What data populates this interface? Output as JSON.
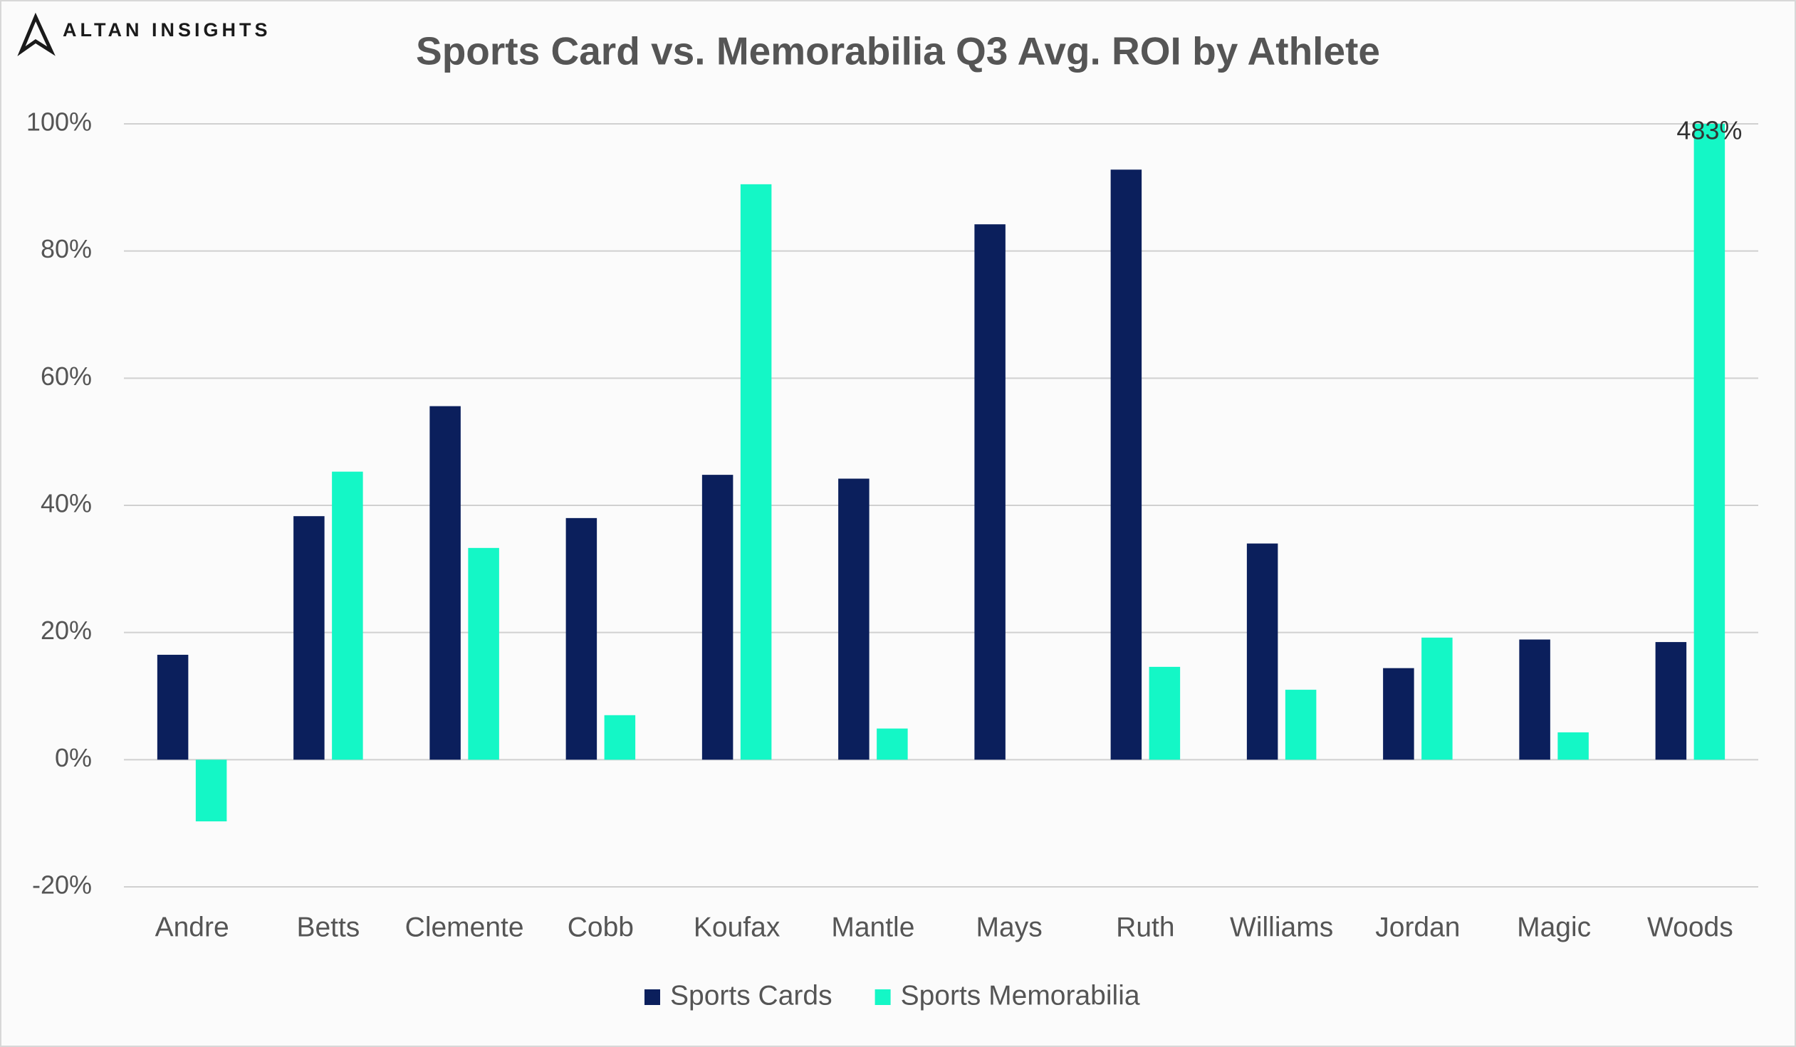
{
  "brand": "ALTAN INSIGHTS",
  "chart_data": {
    "type": "bar",
    "title": "Sports Card vs. Memorabilia Q3 Avg. ROI by Athlete",
    "categories": [
      "Andre",
      "Betts",
      "Clemente",
      "Cobb",
      "Koufax",
      "Mantle",
      "Mays",
      "Ruth",
      "Williams",
      "Jordan",
      "Magic",
      "Woods"
    ],
    "series": [
      {
        "name": "Sports Cards",
        "color": "#0b1f5c",
        "values": [
          16.5,
          38.3,
          55.6,
          38,
          44.8,
          44.2,
          84.2,
          92.8,
          34,
          14.4,
          18.9,
          18.5
        ]
      },
      {
        "name": "Sports Memorabilia",
        "color": "#14f7c6",
        "values": [
          -9.7,
          45.3,
          33.3,
          7,
          90.5,
          4.9,
          0,
          14.6,
          11,
          19.2,
          4.3,
          483
        ],
        "value_labels": [
          null,
          null,
          null,
          null,
          null,
          null,
          null,
          null,
          null,
          null,
          null,
          "483%"
        ]
      }
    ],
    "ylim": [
      -20,
      100
    ],
    "yticks": [
      {
        "value": -20,
        "label": "-20%"
      },
      {
        "value": 0,
        "label": "0%"
      },
      {
        "value": 20,
        "label": "20%"
      },
      {
        "value": 40,
        "label": "40%"
      },
      {
        "value": 60,
        "label": "60%"
      },
      {
        "value": 80,
        "label": "80%"
      },
      {
        "value": 100,
        "label": "100%"
      }
    ],
    "grid": true,
    "legend": "bottom"
  }
}
